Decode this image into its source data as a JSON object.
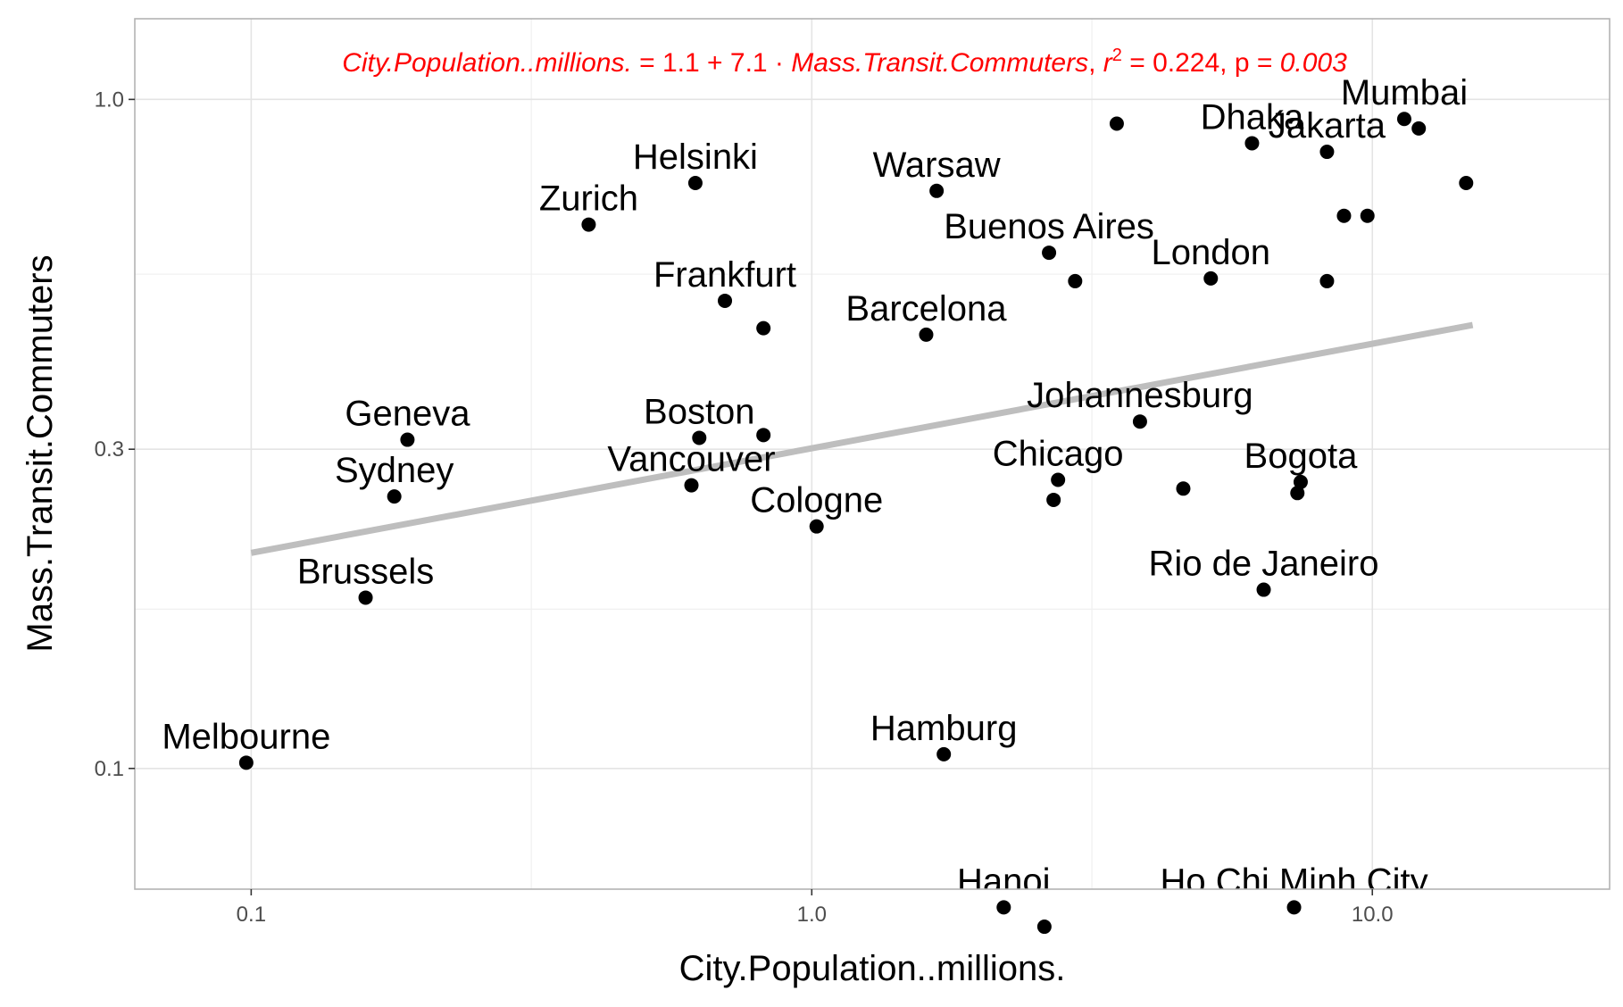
{
  "chart_data": {
    "type": "scatter",
    "xlabel": "City.Population..millions.",
    "ylabel": "Mass.Transit.Commuters",
    "x_scale": "log10",
    "y_scale": "log10",
    "xlim": [
      0.062,
      26.5
    ],
    "ylim": [
      0.066,
      1.32
    ],
    "x_ticks": [
      0.1,
      1.0,
      10.0
    ],
    "x_tick_labels": [
      "0.1",
      "1.0",
      "10.0"
    ],
    "y_ticks": [
      0.1,
      0.3,
      1.0
    ],
    "y_tick_labels": [
      "0.1",
      "0.3",
      "1.0"
    ],
    "grid": true,
    "annotation": {
      "lhs": "City.Population..millions.",
      "eq": " = 1.1 + 7.1 · ",
      "rhs": "Mass.Transit.Commuters",
      "sep": ",  ",
      "r2_sym": "r",
      "r2_sup": "2",
      "r2_val": " = 0.224,  p = ",
      "p_val": "0.003"
    },
    "fit_line": {
      "x": [
        0.1,
        15.1
      ],
      "y": [
        0.21,
        0.46
      ],
      "color": "#bebebe"
    },
    "points": [
      {
        "x": 0.098,
        "y": 0.102,
        "label": "Melbourne"
      },
      {
        "x": 0.16,
        "y": 0.18,
        "label": "Brussels"
      },
      {
        "x": 0.18,
        "y": 0.255,
        "label": "Sydney"
      },
      {
        "x": 0.19,
        "y": 0.31,
        "label": "Geneva"
      },
      {
        "x": 0.4,
        "y": 0.65,
        "label": "Zurich"
      },
      {
        "x": 0.62,
        "y": 0.75,
        "label": "Helsinki"
      },
      {
        "x": 0.7,
        "y": 0.5,
        "label": "Frankfurt"
      },
      {
        "x": 0.82,
        "y": 0.455,
        "label": ""
      },
      {
        "x": 0.63,
        "y": 0.312,
        "label": "Boston"
      },
      {
        "x": 0.82,
        "y": 0.315,
        "label": ""
      },
      {
        "x": 0.61,
        "y": 0.265,
        "label": "Vancouver"
      },
      {
        "x": 1.02,
        "y": 0.23,
        "label": "Cologne"
      },
      {
        "x": 1.6,
        "y": 0.445,
        "label": "Barcelona"
      },
      {
        "x": 1.67,
        "y": 0.73,
        "label": "Warsaw"
      },
      {
        "x": 1.72,
        "y": 0.105,
        "label": "Hamburg"
      },
      {
        "x": 2.2,
        "y": 0.062,
        "label": "Hanoi"
      },
      {
        "x": 2.6,
        "y": 0.058,
        "label": ""
      },
      {
        "x": 2.65,
        "y": 0.59,
        "label": "Buenos Aires"
      },
      {
        "x": 2.95,
        "y": 0.535,
        "label": ""
      },
      {
        "x": 3.5,
        "y": 0.92,
        "label": ""
      },
      {
        "x": 2.75,
        "y": 0.27,
        "label": "Chicago"
      },
      {
        "x": 2.7,
        "y": 0.252,
        "label": ""
      },
      {
        "x": 3.85,
        "y": 0.33,
        "label": "Johannesburg"
      },
      {
        "x": 4.6,
        "y": 0.262,
        "label": ""
      },
      {
        "x": 5.15,
        "y": 0.54,
        "label": "London"
      },
      {
        "x": 6.1,
        "y": 0.86,
        "label": "Dhaka"
      },
      {
        "x": 6.4,
        "y": 0.185,
        "label": "Rio de Janeiro"
      },
      {
        "x": 7.45,
        "y": 0.268,
        "label": "Bogota"
      },
      {
        "x": 7.35,
        "y": 0.258,
        "label": ""
      },
      {
        "x": 7.25,
        "y": 0.062,
        "label": "Ho Chi Minh City"
      },
      {
        "x": 8.3,
        "y": 0.835,
        "label": "Jakarta"
      },
      {
        "x": 8.3,
        "y": 0.535,
        "label": ""
      },
      {
        "x": 8.9,
        "y": 0.67,
        "label": ""
      },
      {
        "x": 9.8,
        "y": 0.67,
        "label": ""
      },
      {
        "x": 11.4,
        "y": 0.935,
        "label": "Mumbai"
      },
      {
        "x": 12.1,
        "y": 0.905,
        "label": ""
      },
      {
        "x": 14.7,
        "y": 0.75,
        "label": ""
      }
    ]
  }
}
